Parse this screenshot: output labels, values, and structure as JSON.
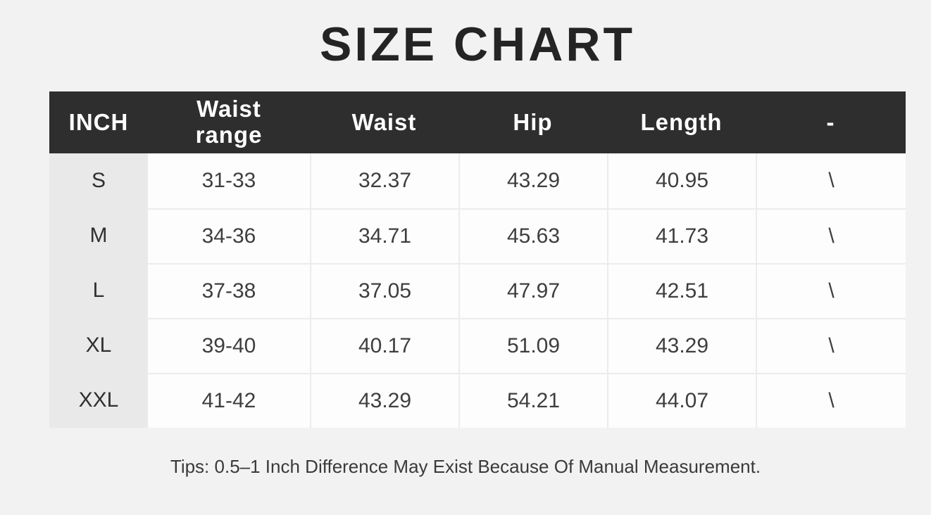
{
  "page": {
    "title": "SIZE CHART",
    "tips": "Tips: 0.5–1 Inch Difference May Exist Because Of Manual Measurement."
  },
  "table": {
    "columns": [
      "INCH",
      "Waist\nrange",
      "Waist",
      "Hip",
      "Length",
      "-"
    ],
    "rows": [
      {
        "size": "S",
        "waist_range": "31-33",
        "waist": "32.37",
        "hip": "43.29",
        "length": "40.95",
        "note": "\\"
      },
      {
        "size": "M",
        "waist_range": "34-36",
        "waist": "34.71",
        "hip": "45.63",
        "length": "41.73",
        "note": "\\"
      },
      {
        "size": "L",
        "waist_range": "37-38",
        "waist": "37.05",
        "hip": "47.97",
        "length": "42.51",
        "note": "\\"
      },
      {
        "size": "XL",
        "waist_range": "39-40",
        "waist": "40.17",
        "hip": "51.09",
        "length": "43.29",
        "note": "\\"
      },
      {
        "size": "XXL",
        "waist_range": "41-42",
        "waist": "43.29",
        "hip": "54.21",
        "length": "44.07",
        "note": "\\"
      }
    ]
  },
  "colors": {
    "background": "#f2f2f2",
    "header_bg": "#2e2e2e",
    "header_text": "#ffffff",
    "size_col_bg": "#e9e9e9",
    "cell_bg": "#fdfdfd",
    "border": "#ececec",
    "text": "#3e3e3e",
    "title_text": "#242424"
  },
  "chart_data": {
    "type": "table",
    "title": "SIZE CHART",
    "unit": "INCH",
    "columns": [
      "INCH",
      "Waist range",
      "Waist",
      "Hip",
      "Length",
      "-"
    ],
    "rows": [
      [
        "S",
        "31-33",
        32.37,
        43.29,
        40.95,
        "\\"
      ],
      [
        "M",
        "34-36",
        34.71,
        45.63,
        41.73,
        "\\"
      ],
      [
        "L",
        "37-38",
        37.05,
        47.97,
        42.51,
        "\\"
      ],
      [
        "XL",
        "39-40",
        40.17,
        51.09,
        43.29,
        "\\"
      ],
      [
        "XXL",
        "41-42",
        43.29,
        54.21,
        44.07,
        "\\"
      ]
    ],
    "footnote": "Tips: 0.5–1 Inch Difference May Exist Because Of Manual Measurement."
  }
}
